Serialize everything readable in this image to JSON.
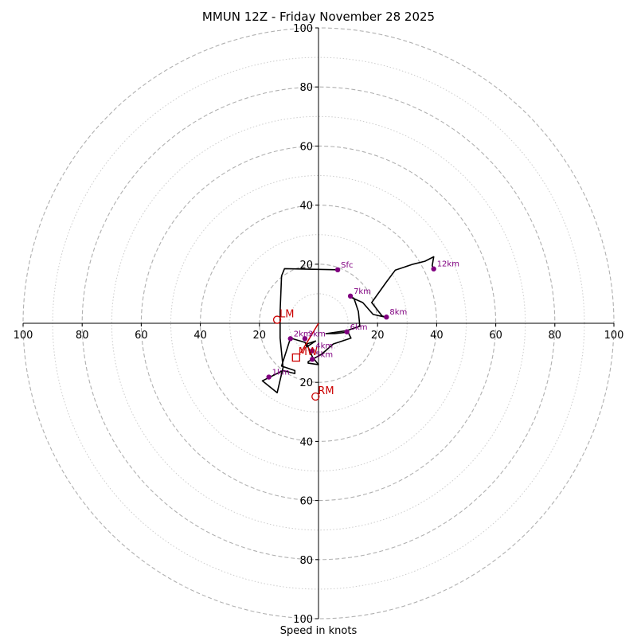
{
  "chart_data": {
    "type": "hodograph",
    "title": "MMUN 12Z - Friday November 28 2025",
    "xlabel": "Speed in knots",
    "ylabel": "",
    "range": [
      -100,
      100
    ],
    "ring_interval": 20,
    "minor_ring_interval": 10,
    "tick_labels": [
      "100",
      "80",
      "60",
      "40",
      "20",
      "20",
      "40",
      "60",
      "80",
      "100"
    ],
    "x_tick_values": [
      -100,
      -80,
      -60,
      -40,
      -20,
      20,
      40,
      60,
      80,
      100
    ],
    "y_tick_values": [
      100,
      80,
      60,
      40,
      20,
      -20,
      -40,
      -60,
      -80,
      -100
    ],
    "colors": {
      "trace": "#000000",
      "markers": "#800080",
      "storm_motion": "#cc0000",
      "major_ring": "#b0b0b0",
      "minor_ring": "#cccccc"
    },
    "trace": [
      [
        6.5,
        18.1
      ],
      [
        -11.5,
        18.5
      ],
      [
        -12.5,
        16
      ],
      [
        -13,
        4
      ],
      [
        -13,
        -5
      ],
      [
        -12,
        -15
      ],
      [
        -14,
        -23.5
      ],
      [
        -19,
        -19.5
      ],
      [
        -12,
        -16
      ],
      [
        -8,
        -17
      ],
      [
        -8,
        -16
      ],
      [
        -12.5,
        -14.5
      ],
      [
        -9.5,
        -5
      ],
      [
        -4.5,
        -6.5
      ],
      [
        -4,
        -8
      ],
      [
        -1,
        -6
      ],
      [
        -4,
        -7
      ],
      [
        -2,
        -11.5
      ],
      [
        0,
        -14
      ],
      [
        -3.5,
        -13.5
      ],
      [
        -3.5,
        -13
      ],
      [
        1,
        -10.5
      ],
      [
        5,
        -7
      ],
      [
        11,
        -5
      ],
      [
        10,
        -3
      ],
      [
        5.5,
        -3.5
      ],
      [
        2.5,
        -3.5
      ],
      [
        9.5,
        -2.5
      ],
      [
        14,
        -1
      ],
      [
        13.5,
        4
      ],
      [
        12,
        8.5
      ],
      [
        10.5,
        9
      ],
      [
        15,
        7
      ],
      [
        18.5,
        3
      ],
      [
        23,
        2
      ],
      [
        21.5,
        2.5
      ],
      [
        18,
        7
      ],
      [
        23,
        14
      ],
      [
        26,
        18
      ],
      [
        32,
        20
      ],
      [
        36,
        21
      ],
      [
        39,
        22.5
      ],
      [
        38.5,
        19.5
      ],
      [
        39,
        18.4
      ]
    ],
    "height_markers": [
      {
        "label": "Sfc",
        "u": 6.5,
        "v": 18.1
      },
      {
        "label": "1km",
        "u": -16.8,
        "v": -18.2
      },
      {
        "label": "2km",
        "u": -9.5,
        "v": -5.2
      },
      {
        "label": "3km",
        "u": -4.6,
        "v": -5.2
      },
      {
        "label": "4km",
        "u": -2.1,
        "v": -9.3
      },
      {
        "label": "5km",
        "u": -2.1,
        "v": -12.2
      },
      {
        "label": "6km",
        "u": 9.6,
        "v": -2.9
      },
      {
        "label": "7km",
        "u": 10.8,
        "v": 9.2
      },
      {
        "label": "8km",
        "u": 23,
        "v": 2.1
      },
      {
        "label": "12km",
        "u": 39,
        "v": 18.4
      }
    ],
    "storm_motion": [
      {
        "label": "LM",
        "u": -14,
        "v": 1.2,
        "symbol": "circle"
      },
      {
        "label": "RM",
        "u": -1,
        "v": -24.8,
        "symbol": "circle"
      },
      {
        "label": "MW",
        "u": -7.6,
        "v": -11.6,
        "symbol": "square"
      }
    ],
    "shear_vector": {
      "from": [
        -6,
        -10
      ],
      "to": [
        0,
        0
      ]
    }
  }
}
